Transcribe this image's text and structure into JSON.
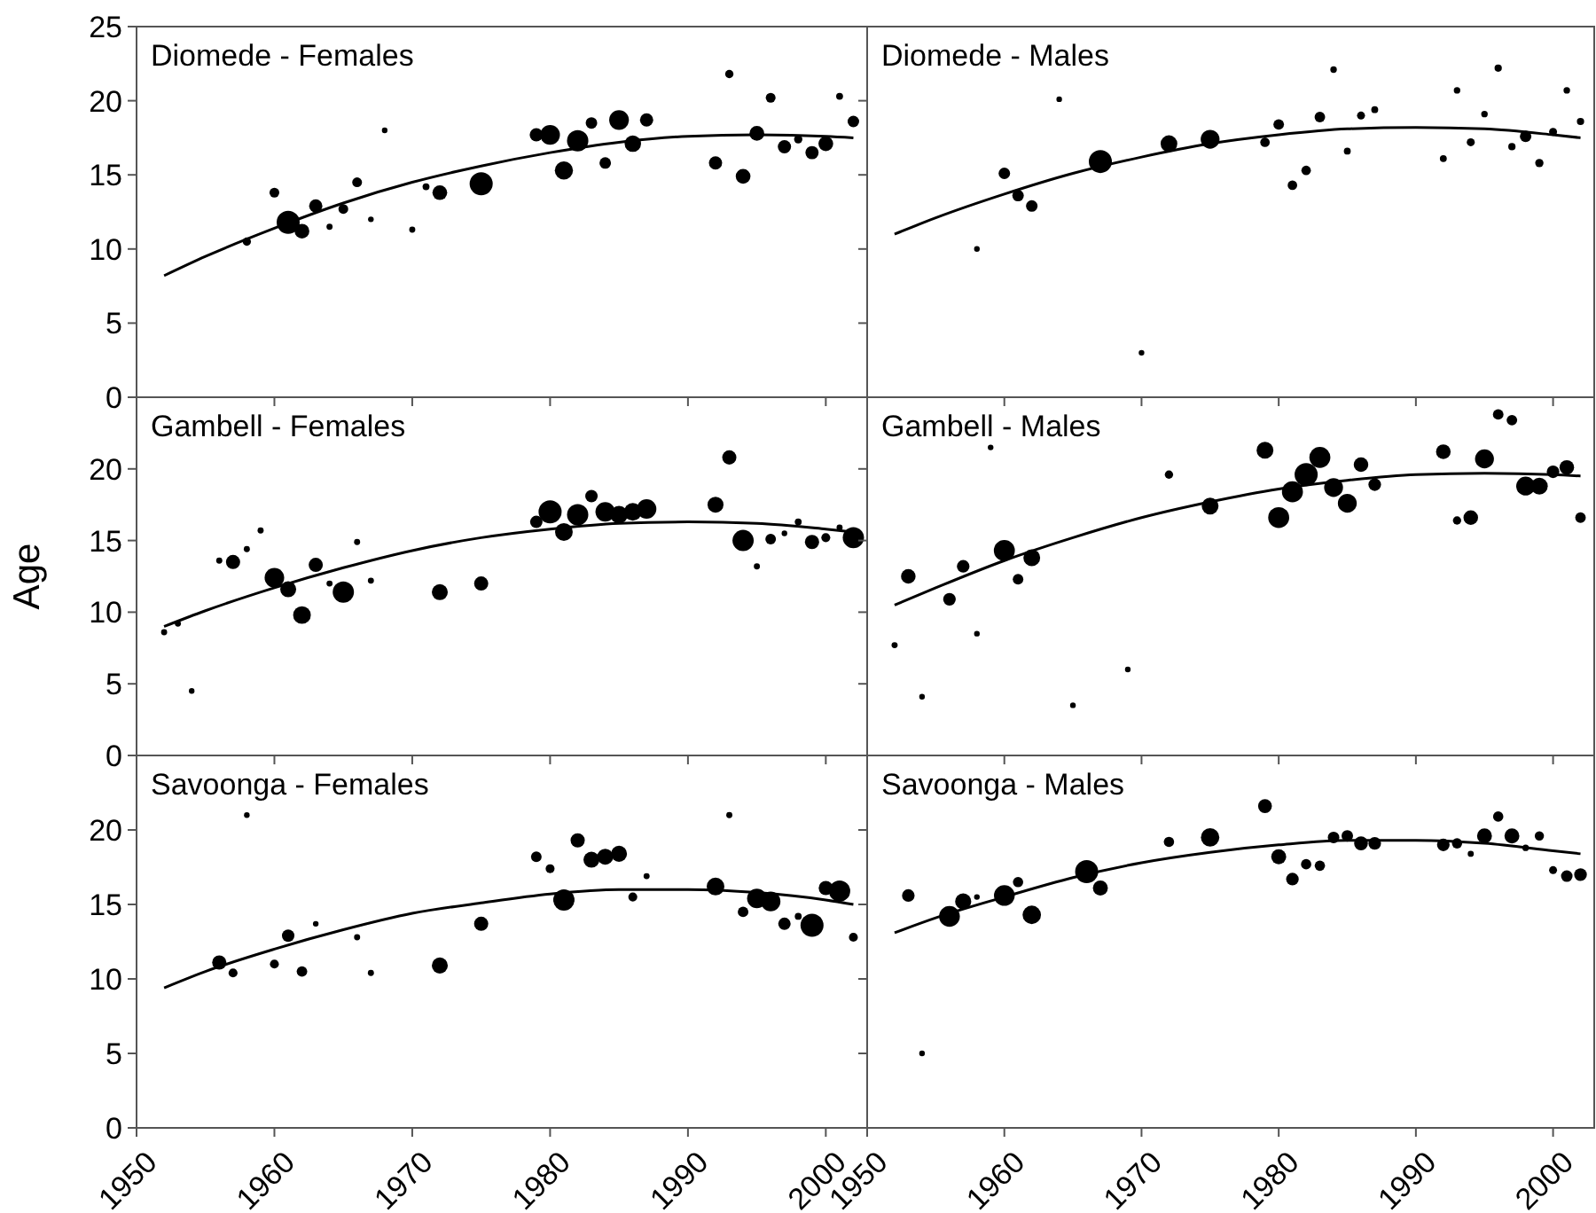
{
  "chart_data": [
    {
      "type": "bubble",
      "title": "Diomede - Females",
      "xlim": [
        1950,
        2003
      ],
      "ylim": [
        0,
        25
      ],
      "xticks": [
        1950,
        1960,
        1970,
        1980,
        1990,
        2000
      ],
      "yticks": [
        0,
        5,
        10,
        15,
        20,
        25
      ],
      "tick_labels": "y",
      "series": [
        {
          "type": "bubble",
          "color": "#000000",
          "x": [
            1958,
            1960,
            1961,
            1962,
            1963,
            1964,
            1965,
            1966,
            1967,
            1968,
            1970,
            1971,
            1972,
            1975,
            1979,
            1980,
            1981,
            1982,
            1983,
            1984,
            1985,
            1986,
            1987,
            1992,
            1993,
            1994,
            1995,
            1996,
            1997,
            1998,
            1999,
            2000,
            2001,
            2002
          ],
          "values": [
            10.5,
            13.8,
            11.8,
            11.2,
            12.9,
            11.5,
            12.7,
            14.5,
            12.0,
            18.0,
            11.3,
            14.2,
            13.8,
            14.4,
            17.7,
            17.7,
            15.3,
            17.3,
            18.5,
            15.8,
            18.7,
            17.1,
            18.7,
            15.8,
            21.8,
            14.9,
            17.8,
            20.2,
            16.9,
            17.4,
            16.5,
            17.1,
            20.3,
            18.6
          ],
          "sizes": [
            0.13,
            0.18,
            1,
            0.41,
            0.33,
            0.07,
            0.18,
            0.18,
            0.06,
            0.06,
            0.07,
            0.09,
            0.41,
            1,
            0.33,
            0.73,
            0.62,
            0.86,
            0.25,
            0.25,
            0.73,
            0.51,
            0.33,
            0.33,
            0.13,
            0.41,
            0.41,
            0.18,
            0.33,
            0.13,
            0.33,
            0.41,
            0.09,
            0.25
          ]
        },
        {
          "type": "line",
          "color": "#000000",
          "x": [
            1952,
            1955,
            1960,
            1965,
            1970,
            1975,
            1980,
            1985,
            1990,
            1995,
            2000,
            2002
          ],
          "values": [
            8.2,
            9.5,
            11.4,
            13.1,
            14.5,
            15.6,
            16.5,
            17.2,
            17.6,
            17.7,
            17.6,
            17.5
          ]
        }
      ]
    },
    {
      "type": "bubble",
      "title": "Diomede - Males",
      "xlim": [
        1950,
        2003
      ],
      "ylim": [
        0,
        25
      ],
      "xticks": [
        1950,
        1960,
        1970,
        1980,
        1990,
        2000
      ],
      "yticks": [
        0,
        5,
        10,
        15,
        20,
        25
      ],
      "tick_labels": false,
      "series": [
        {
          "type": "bubble",
          "color": "#000000",
          "x": [
            1958,
            1960,
            1961,
            1962,
            1964,
            1967,
            1970,
            1972,
            1975,
            1979,
            1980,
            1981,
            1982,
            1983,
            1984,
            1985,
            1986,
            1987,
            1992,
            1993,
            1994,
            1995,
            1996,
            1997,
            1998,
            1999,
            2000,
            2001,
            2002
          ],
          "values": [
            10.0,
            15.1,
            13.6,
            12.9,
            20.1,
            15.9,
            3.0,
            17.1,
            17.4,
            17.2,
            18.4,
            14.3,
            15.3,
            18.9,
            22.1,
            16.6,
            19.0,
            19.4,
            16.1,
            20.7,
            17.2,
            19.1,
            22.2,
            16.9,
            17.6,
            15.8,
            17.9,
            20.7,
            18.6
          ],
          "sizes": [
            0.06,
            0.25,
            0.25,
            0.25,
            0.06,
            1,
            0.06,
            0.53,
            0.67,
            0.17,
            0.21,
            0.17,
            0.17,
            0.21,
            0.08,
            0.09,
            0.12,
            0.09,
            0.09,
            0.08,
            0.12,
            0.08,
            0.1,
            0.1,
            0.25,
            0.13,
            0.12,
            0.08,
            0.1
          ]
        },
        {
          "type": "line",
          "color": "#000000",
          "x": [
            1952,
            1955,
            1960,
            1965,
            1970,
            1975,
            1980,
            1985,
            1990,
            1995,
            2000,
            2002
          ],
          "values": [
            11.0,
            12.1,
            13.7,
            15.1,
            16.2,
            17.1,
            17.7,
            18.1,
            18.2,
            18.1,
            17.7,
            17.5
          ]
        }
      ]
    },
    {
      "type": "bubble",
      "title": "Gambell - Females",
      "ylabel": "Age",
      "xlim": [
        1950,
        2003
      ],
      "ylim": [
        0,
        25
      ],
      "xticks": [
        1950,
        1960,
        1970,
        1980,
        1990,
        2000
      ],
      "yticks": [
        0,
        5,
        10,
        15,
        20
      ],
      "tick_labels": "y",
      "series": [
        {
          "type": "bubble",
          "color": "#000000",
          "x": [
            1952,
            1953,
            1954,
            1956,
            1957,
            1958,
            1959,
            1960,
            1961,
            1962,
            1963,
            1964,
            1965,
            1966,
            1967,
            1972,
            1975,
            1979,
            1980,
            1981,
            1982,
            1983,
            1984,
            1985,
            1986,
            1987,
            1992,
            1993,
            1994,
            1995,
            1996,
            1997,
            1998,
            1999,
            2000,
            2001,
            2002
          ],
          "values": [
            8.6,
            9.2,
            4.5,
            13.6,
            13.5,
            14.4,
            15.7,
            12.4,
            11.6,
            9.8,
            13.3,
            12.0,
            11.4,
            14.9,
            12.2,
            11.4,
            12.0,
            16.3,
            17.0,
            15.6,
            16.8,
            18.1,
            17.0,
            16.8,
            17.0,
            17.2,
            17.5,
            20.8,
            15.0,
            13.2,
            15.1,
            15.5,
            16.3,
            14.9,
            15.2,
            15.9,
            15.2
          ],
          "sizes": [
            0.07,
            0.07,
            0.06,
            0.07,
            0.38,
            0.07,
            0.07,
            0.72,
            0.48,
            0.59,
            0.38,
            0.07,
            0.85,
            0.07,
            0.07,
            0.48,
            0.38,
            0.29,
            1,
            0.59,
            0.85,
            0.29,
            0.72,
            0.59,
            0.59,
            0.72,
            0.48,
            0.38,
            0.85,
            0.07,
            0.21,
            0.06,
            0.09,
            0.38,
            0.15,
            0.07,
            0.85
          ]
        },
        {
          "type": "line",
          "color": "#000000",
          "x": [
            1952,
            1955,
            1960,
            1965,
            1970,
            1975,
            1980,
            1985,
            1990,
            1995,
            2000,
            2002
          ],
          "values": [
            9.0,
            10.1,
            11.7,
            13.1,
            14.3,
            15.2,
            15.8,
            16.2,
            16.3,
            16.2,
            15.8,
            15.6
          ]
        }
      ]
    },
    {
      "type": "bubble",
      "title": "Gambell - Males",
      "xlim": [
        1950,
        2003
      ],
      "ylim": [
        0,
        25
      ],
      "xticks": [
        1950,
        1960,
        1970,
        1980,
        1990,
        2000
      ],
      "yticks": [
        0,
        5,
        10,
        15,
        20
      ],
      "tick_labels": false,
      "series": [
        {
          "type": "bubble",
          "color": "#000000",
          "x": [
            1952,
            1953,
            1954,
            1956,
            1957,
            1958,
            1959,
            1960,
            1961,
            1962,
            1965,
            1969,
            1972,
            1975,
            1979,
            1980,
            1981,
            1982,
            1983,
            1984,
            1985,
            1986,
            1987,
            1992,
            1993,
            1994,
            1995,
            1996,
            1997,
            1998,
            1999,
            2000,
            2001,
            2002
          ],
          "values": [
            7.7,
            12.5,
            4.1,
            10.9,
            13.2,
            8.5,
            21.5,
            14.3,
            12.3,
            13.8,
            3.5,
            6.0,
            19.6,
            17.4,
            21.3,
            16.6,
            18.4,
            19.6,
            20.8,
            18.7,
            17.6,
            20.3,
            18.9,
            21.2,
            16.4,
            16.6,
            20.7,
            23.8,
            23.4,
            18.8,
            18.8,
            19.8,
            20.1,
            16.6
          ],
          "sizes": [
            0.07,
            0.4,
            0.06,
            0.3,
            0.3,
            0.06,
            0.06,
            0.83,
            0.21,
            0.53,
            0.06,
            0.06,
            0.13,
            0.53,
            0.53,
            0.83,
            0.83,
            1,
            0.83,
            0.67,
            0.67,
            0.4,
            0.3,
            0.4,
            0.13,
            0.4,
            0.67,
            0.21,
            0.21,
            0.67,
            0.53,
            0.3,
            0.4,
            0.21
          ]
        },
        {
          "type": "line",
          "color": "#000000",
          "x": [
            1952,
            1955,
            1960,
            1965,
            1970,
            1975,
            1980,
            1985,
            1990,
            1995,
            2000,
            2002
          ],
          "values": [
            10.5,
            11.7,
            13.6,
            15.2,
            16.6,
            17.7,
            18.6,
            19.2,
            19.6,
            19.7,
            19.6,
            19.5
          ]
        }
      ]
    },
    {
      "type": "bubble",
      "title": "Savoonga - Females",
      "xlim": [
        1950,
        2003
      ],
      "ylim": [
        0,
        25
      ],
      "xticks": [
        1950,
        1960,
        1970,
        1980,
        1990,
        2000
      ],
      "yticks": [
        0,
        5,
        10,
        15,
        20
      ],
      "series": [
        {
          "type": "bubble",
          "color": "#000000",
          "x": [
            1956,
            1957,
            1958,
            1960,
            1961,
            1962,
            1963,
            1966,
            1967,
            1972,
            1975,
            1979,
            1980,
            1981,
            1982,
            1983,
            1984,
            1985,
            1986,
            1987,
            1992,
            1993,
            1994,
            1995,
            1996,
            1997,
            1998,
            1999,
            2000,
            2001,
            2002
          ],
          "values": [
            11.1,
            10.4,
            21.0,
            11.0,
            12.9,
            10.5,
            13.7,
            12.8,
            10.4,
            10.9,
            13.7,
            18.2,
            17.4,
            15.3,
            19.3,
            18.0,
            18.2,
            18.4,
            15.5,
            16.9,
            16.2,
            21.0,
            14.5,
            15.4,
            15.2,
            13.7,
            14.2,
            13.6,
            16.1,
            15.9,
            12.8
          ],
          "sizes": [
            0.38,
            0.15,
            0.06,
            0.15,
            0.29,
            0.21,
            0.06,
            0.07,
            0.07,
            0.48,
            0.38,
            0.21,
            0.15,
            0.85,
            0.38,
            0.48,
            0.48,
            0.48,
            0.15,
            0.07,
            0.59,
            0.07,
            0.21,
            0.72,
            0.72,
            0.29,
            0.09,
            1,
            0.38,
            0.85,
            0.15
          ]
        },
        {
          "type": "line",
          "color": "#000000",
          "x": [
            1952,
            1955,
            1960,
            1965,
            1970,
            1975,
            1980,
            1985,
            1990,
            1995,
            2000,
            2002
          ],
          "values": [
            9.4,
            10.5,
            12.0,
            13.3,
            14.4,
            15.1,
            15.7,
            16.0,
            16.0,
            15.8,
            15.3,
            15.0
          ]
        }
      ]
    },
    {
      "type": "bubble",
      "title": "Savoonga - Males",
      "xlim": [
        1950,
        2003
      ],
      "ylim": [
        0,
        25
      ],
      "xticks": [
        1950,
        1960,
        1970,
        1980,
        1990,
        2000
      ],
      "yticks": [
        0,
        5,
        10,
        15,
        20
      ],
      "tick_labels": "x",
      "series": [
        {
          "type": "bubble",
          "color": "#000000",
          "x": [
            1953,
            1954,
            1956,
            1957,
            1958,
            1960,
            1961,
            1962,
            1966,
            1967,
            1972,
            1975,
            1979,
            1980,
            1981,
            1982,
            1983,
            1984,
            1985,
            1986,
            1987,
            1992,
            1993,
            1994,
            1995,
            1996,
            1997,
            1998,
            1999,
            2000,
            2001,
            2002
          ],
          "values": [
            15.6,
            5.0,
            14.2,
            15.2,
            15.5,
            15.6,
            16.5,
            14.3,
            17.2,
            16.1,
            19.2,
            19.5,
            21.6,
            18.2,
            16.7,
            17.7,
            17.6,
            19.5,
            19.6,
            19.1,
            19.1,
            19.0,
            19.1,
            18.4,
            19.6,
            20.9,
            19.6,
            18.8,
            19.6,
            17.3,
            16.9,
            17.0
          ],
          "sizes": [
            0.3,
            0.06,
            0.81,
            0.49,
            0.06,
            0.81,
            0.2,
            0.64,
            1,
            0.42,
            0.2,
            0.64,
            0.36,
            0.42,
            0.3,
            0.2,
            0.2,
            0.25,
            0.25,
            0.36,
            0.3,
            0.3,
            0.2,
            0.07,
            0.42,
            0.2,
            0.42,
            0.08,
            0.16,
            0.12,
            0.25,
            0.3
          ]
        },
        {
          "type": "line",
          "color": "#000000",
          "x": [
            1952,
            1955,
            1960,
            1965,
            1970,
            1975,
            1980,
            1985,
            1990,
            1995,
            2000,
            2002
          ],
          "values": [
            13.1,
            14.1,
            15.5,
            16.8,
            17.8,
            18.5,
            19.0,
            19.3,
            19.3,
            19.1,
            18.6,
            18.4
          ]
        }
      ]
    }
  ]
}
